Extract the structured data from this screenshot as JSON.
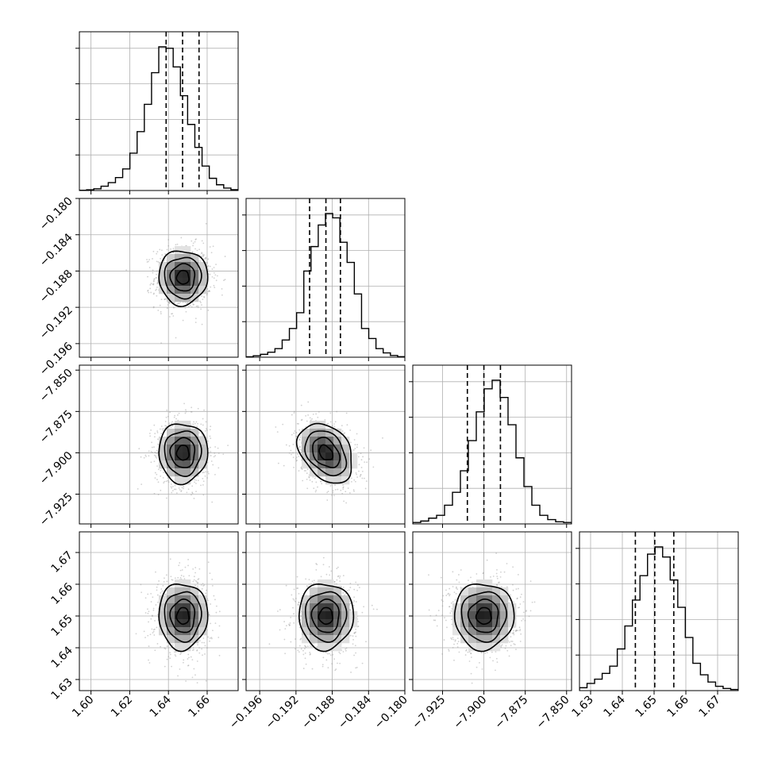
{
  "chart_data": {
    "type": "corner",
    "grid": true,
    "parameters": [
      {
        "range": [
          1.594,
          1.676
        ],
        "mean": 1.6475,
        "std": 0.0063,
        "quantiles": [
          1.6388,
          1.6473,
          1.6558
        ],
        "ticks": [
          1.6,
          1.62,
          1.64,
          1.66
        ],
        "tick_labels": [
          "1.60",
          "1.62",
          "1.64",
          "1.66"
        ],
        "hist": [
          0.002,
          0.005,
          0.012,
          0.03,
          0.055,
          0.09,
          0.15,
          0.26,
          0.41,
          0.6,
          0.82,
          1.0,
          0.99,
          0.86,
          0.66,
          0.46,
          0.3,
          0.17,
          0.085,
          0.04,
          0.017,
          0.006
        ]
      },
      {
        "range": [
          -0.1975,
          -0.18
        ],
        "mean": -0.1887,
        "std": 0.0015,
        "quantiles": [
          -0.1905,
          -0.1887,
          -0.1871
        ],
        "ticks": [
          -0.196,
          -0.192,
          -0.188,
          -0.184,
          -0.18
        ],
        "tick_labels": [
          "−0.196",
          "−0.192",
          "−0.188",
          "−0.184",
          "−0.180"
        ],
        "hist": [
          0.003,
          0.01,
          0.02,
          0.035,
          0.06,
          0.12,
          0.2,
          0.31,
          0.6,
          0.77,
          0.92,
          1.0,
          0.97,
          0.8,
          0.66,
          0.44,
          0.2,
          0.13,
          0.06,
          0.03,
          0.012,
          0.004
        ]
      },
      {
        "range": [
          -7.943,
          -7.847
        ],
        "mean": -7.9,
        "std": 0.009,
        "quantiles": [
          -7.91,
          -7.9,
          -7.89
        ],
        "ticks": [
          -7.925,
          -7.9,
          -7.875,
          -7.85
        ],
        "tick_labels": [
          "−7.925",
          "−7.900",
          "−7.875",
          "−7.850"
        ],
        "hist": [
          0.01,
          0.02,
          0.04,
          0.06,
          0.13,
          0.22,
          0.37,
          0.58,
          0.78,
          0.94,
          1.0,
          0.88,
          0.69,
          0.46,
          0.26,
          0.13,
          0.06,
          0.03,
          0.015,
          0.01
        ]
      },
      {
        "range": [
          1.6265,
          1.6765
        ],
        "mean": 1.65,
        "std": 0.0052,
        "quantiles": [
          1.6441,
          1.6502,
          1.6562
        ],
        "ticks": [
          1.63,
          1.64,
          1.65,
          1.66,
          1.67
        ],
        "tick_labels": [
          "1.63",
          "1.64",
          "1.65",
          "1.66",
          "1.67"
        ],
        "hist": [
          0.02,
          0.05,
          0.08,
          0.12,
          0.17,
          0.29,
          0.45,
          0.63,
          0.8,
          0.95,
          1.0,
          0.93,
          0.77,
          0.58,
          0.37,
          0.19,
          0.11,
          0.06,
          0.03,
          0.015,
          0.008
        ]
      }
    ],
    "correlations": [
      {
        "i": 1,
        "j": 0,
        "rho": 0.0
      },
      {
        "i": 2,
        "j": 0,
        "rho": 0.0
      },
      {
        "i": 2,
        "j": 1,
        "rho": -0.33
      },
      {
        "i": 3,
        "j": 0,
        "rho": 0.0
      },
      {
        "i": 3,
        "j": 1,
        "rho": 0.0
      },
      {
        "i": 3,
        "j": 2,
        "rho": 0.0
      }
    ],
    "contour_levels_sigma": [
      0.5,
      1.0,
      1.5,
      2.0
    ]
  }
}
